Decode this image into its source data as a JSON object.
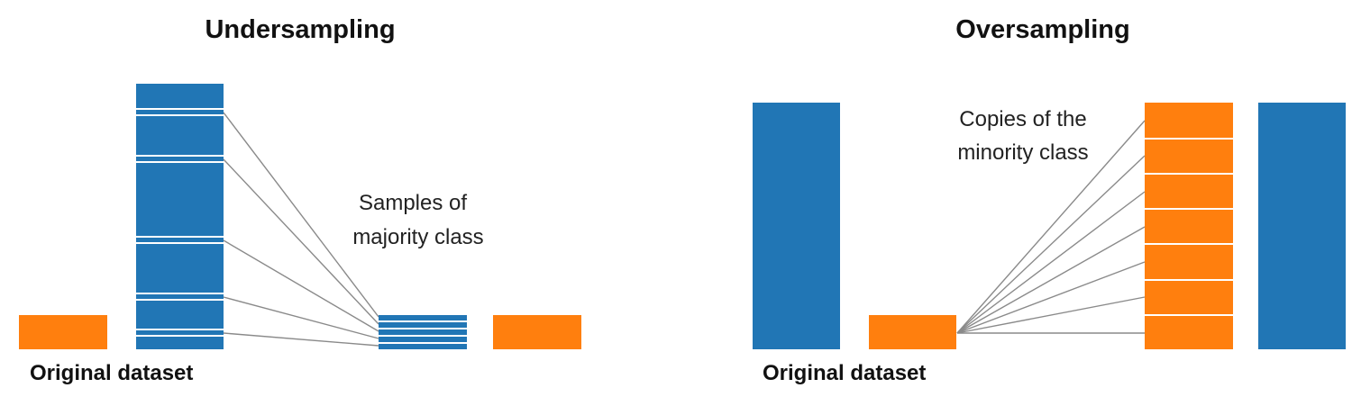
{
  "colors": {
    "majority": "#2176b5",
    "minority": "#ff7f0e"
  },
  "undersampling": {
    "title": "Undersampling",
    "caption": "Original dataset",
    "note_line1": "Samples of",
    "note_line2": "majority class"
  },
  "oversampling": {
    "title": "Oversampling",
    "caption": "Original dataset",
    "note_line1": "Copies of the",
    "note_line2": "minority class"
  }
}
